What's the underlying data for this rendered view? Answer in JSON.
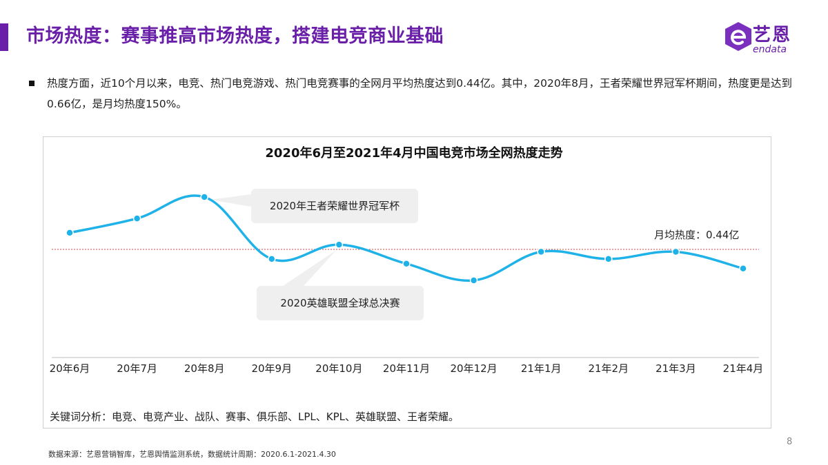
{
  "header": {
    "title": "市场热度：赛事推高市场热度，搭建电竞商业基础",
    "accent_color": "#6a1fa8"
  },
  "logo": {
    "name_cn": "艺恩",
    "name_en": "endata",
    "icon": "endata-logo-icon"
  },
  "description": "热度方面，近10个月以来，电竞、热门电竞游戏、热门电竞赛事的全网月平均热度达到0.44亿。其中，2020年8月，王者荣耀世界冠军杯期间，热度更是达到0.66亿，是月均热度150%。",
  "chart_data": {
    "type": "line",
    "title": "2020年6月至2021年4月中国电竞市场全网热度走势",
    "categories": [
      "20年6月",
      "20年7月",
      "20年8月",
      "20年9月",
      "20年10月",
      "20年11月",
      "20年12月",
      "21年1月",
      "21年2月",
      "21年3月",
      "21年4月"
    ],
    "series": [
      {
        "values": [
          0.51,
          0.57,
          0.66,
          0.4,
          0.46,
          0.38,
          0.31,
          0.43,
          0.4,
          0.43,
          0.36
        ],
        "color": "#1fb2e8"
      }
    ],
    "ylim": [
      0,
      0.8
    ],
    "average": {
      "label": "月均热度：0.44亿",
      "value": 0.44,
      "color": "#e04040"
    },
    "annotations": [
      {
        "text": "2020年王者荣耀世界冠军杯",
        "category": "20年8月"
      },
      {
        "text": "2020英雄联盟全球总决赛",
        "category": "20年10月"
      }
    ],
    "grid": false
  },
  "keywords": "关键词分析：电竞、电竞产业、战队、赛事、俱乐部、LPL、KPL、英雄联盟、王者荣耀。",
  "page_number": "8",
  "source": "数据来源：艺恩营销智库，艺恩舆情监测系统，数据统计周期：2020.6.1-2021.4.30"
}
